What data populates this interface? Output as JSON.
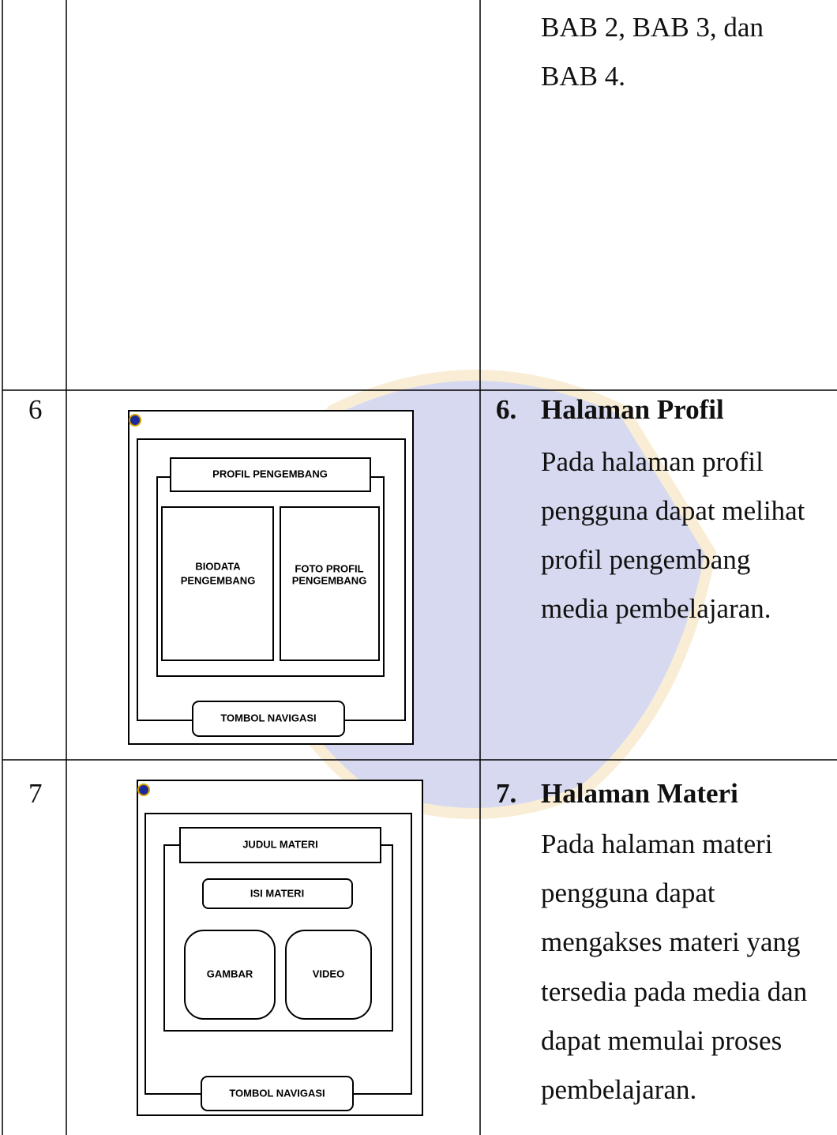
{
  "table": {
    "rows": [
      {
        "lines": [
          "BAB 2, BAB 3, dan",
          "BAB 4."
        ]
      },
      {
        "number": "6",
        "heading_number": "6.",
        "heading": "Halaman Profil",
        "lines": [
          "Pada halaman profil",
          "pengguna dapat melihat",
          "profil pengembang",
          "media pembelajaran."
        ],
        "wireframe": {
          "title": "PROFIL PENGEMBANG",
          "panels": [
            [
              "BIODATA",
              "PENGEMBANG"
            ],
            [
              "FOTO PROFIL",
              "PENGEMBANG"
            ]
          ],
          "button": "TOMBOL NAVIGASI"
        }
      },
      {
        "number": "7",
        "heading_number": "7.",
        "heading": "Halaman Materi",
        "lines": [
          "Pada halaman materi",
          "pengguna dapat",
          "mengakses materi yang",
          "tersedia pada media dan",
          "dapat memulai proses",
          "pembelajaran."
        ],
        "wireframe": {
          "title": "JUDUL MATERI",
          "content": "ISI MATERI",
          "media": [
            "GAMBAR",
            "VIDEO"
          ],
          "button": "TOMBOL NAVIGASI"
        }
      }
    ]
  }
}
